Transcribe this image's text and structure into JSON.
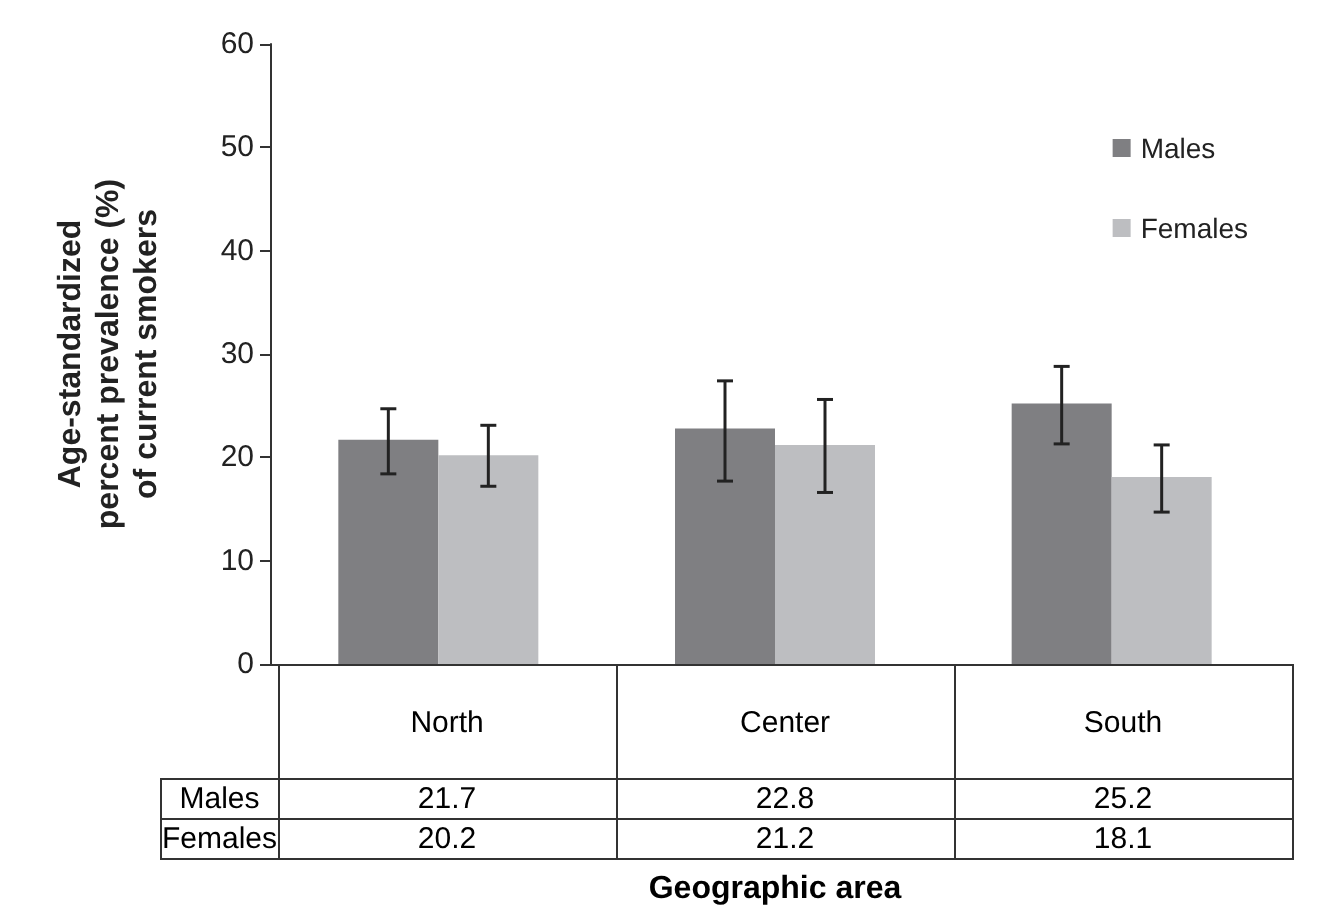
{
  "chart_data": {
    "type": "bar",
    "ylabel": "Age-standardized\npercent prevalence (%)\nof current smokers",
    "xlabel": "Geographic area",
    "categories": [
      "North",
      "Center",
      "South"
    ],
    "series": [
      {
        "name": "Males",
        "color": "#7f7f82",
        "values": [
          21.7,
          22.8,
          25.2
        ],
        "errors": [
          [
            18.4,
            24.7
          ],
          [
            17.7,
            27.4
          ],
          [
            21.3,
            28.8
          ]
        ]
      },
      {
        "name": "Females",
        "color": "#bdbec1",
        "values": [
          20.2,
          21.2,
          18.1
        ],
        "errors": [
          [
            17.2,
            23.1
          ],
          [
            16.6,
            25.6
          ],
          [
            14.7,
            21.2
          ]
        ]
      }
    ],
    "ylim": [
      0,
      60
    ],
    "yticks": [
      0,
      10,
      20,
      30,
      40,
      50,
      60
    ],
    "grid": false,
    "legend": "top right",
    "data_labels": true
  }
}
